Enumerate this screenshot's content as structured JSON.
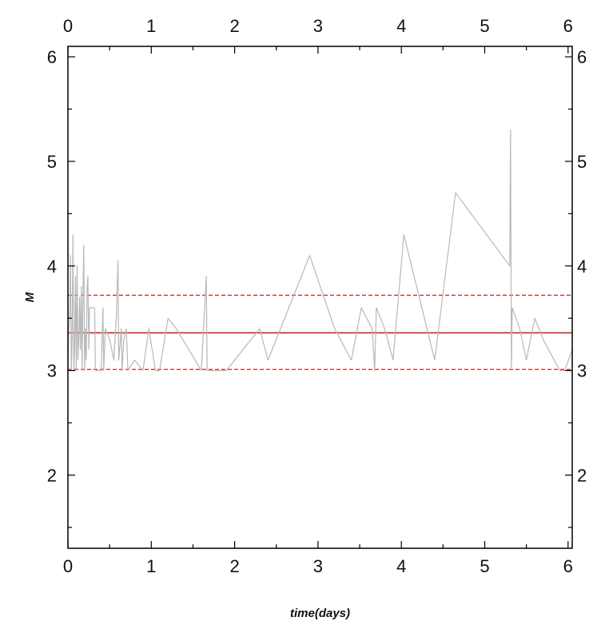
{
  "chart_data": {
    "type": "line",
    "xlabel": "time(days)",
    "ylabel": "M",
    "xlim": [
      0,
      6.05
    ],
    "ylim": [
      1.3,
      6.1
    ],
    "x_ticks": [
      0,
      1,
      2,
      3,
      4,
      5,
      6
    ],
    "y_ticks": [
      2,
      3,
      4,
      5,
      6
    ],
    "grid": false,
    "axes_on_all_sides": true,
    "series": [
      {
        "color": "#b8b8b8",
        "points": [
          [
            0.0,
            3.0
          ],
          [
            0.01,
            3.4
          ],
          [
            0.02,
            3.5
          ],
          [
            0.03,
            4.1
          ],
          [
            0.04,
            3.0
          ],
          [
            0.05,
            3.3
          ],
          [
            0.06,
            4.3
          ],
          [
            0.07,
            3.0
          ],
          [
            0.08,
            3.2
          ],
          [
            0.09,
            3.9
          ],
          [
            0.1,
            3.0
          ],
          [
            0.11,
            4.0
          ],
          [
            0.12,
            3.1
          ],
          [
            0.13,
            3.3
          ],
          [
            0.14,
            3.7
          ],
          [
            0.15,
            3.2
          ],
          [
            0.16,
            3.8
          ],
          [
            0.17,
            3.0
          ],
          [
            0.18,
            3.7
          ],
          [
            0.19,
            4.2
          ],
          [
            0.2,
            3.0
          ],
          [
            0.21,
            3.4
          ],
          [
            0.22,
            3.1
          ],
          [
            0.23,
            3.8
          ],
          [
            0.24,
            3.9
          ],
          [
            0.25,
            3.2
          ],
          [
            0.26,
            3.6
          ],
          [
            0.3,
            3.6
          ],
          [
            0.32,
            3.6
          ],
          [
            0.33,
            3.0
          ],
          [
            0.4,
            3.0
          ],
          [
            0.42,
            3.6
          ],
          [
            0.43,
            3.0
          ],
          [
            0.45,
            3.4
          ],
          [
            0.5,
            3.3
          ],
          [
            0.55,
            3.1
          ],
          [
            0.58,
            3.5
          ],
          [
            0.6,
            4.05
          ],
          [
            0.61,
            3.1
          ],
          [
            0.64,
            3.4
          ],
          [
            0.65,
            3.0
          ],
          [
            0.67,
            3.3
          ],
          [
            0.7,
            3.4
          ],
          [
            0.72,
            3.0
          ],
          [
            0.8,
            3.1
          ],
          [
            0.9,
            3.0
          ],
          [
            0.97,
            3.4
          ],
          [
            1.05,
            3.0
          ],
          [
            1.1,
            3.0
          ],
          [
            1.2,
            3.5
          ],
          [
            1.3,
            3.4
          ],
          [
            1.6,
            3.0
          ],
          [
            1.66,
            3.9
          ],
          [
            1.67,
            3.0
          ],
          [
            1.9,
            3.0
          ],
          [
            2.3,
            3.4
          ],
          [
            2.4,
            3.1
          ],
          [
            2.9,
            4.1
          ],
          [
            3.2,
            3.4
          ],
          [
            3.4,
            3.1
          ],
          [
            3.52,
            3.6
          ],
          [
            3.65,
            3.4
          ],
          [
            3.68,
            3.0
          ],
          [
            3.7,
            3.6
          ],
          [
            3.8,
            3.4
          ],
          [
            3.9,
            3.1
          ],
          [
            4.03,
            4.3
          ],
          [
            4.4,
            3.1
          ],
          [
            4.65,
            4.7
          ],
          [
            5.3,
            4.0
          ],
          [
            5.31,
            5.3
          ],
          [
            5.32,
            3.0
          ],
          [
            5.33,
            3.6
          ],
          [
            5.42,
            3.4
          ],
          [
            5.5,
            3.1
          ],
          [
            5.6,
            3.5
          ],
          [
            5.7,
            3.3
          ],
          [
            5.9,
            3.0
          ],
          [
            5.96,
            3.0
          ],
          [
            6.05,
            3.2
          ]
        ]
      }
    ],
    "reference_lines": [
      {
        "y": 3.36,
        "color": "#cc2222",
        "style": "solid"
      },
      {
        "y": 3.72,
        "color": "#cc2222",
        "style": "dashed"
      },
      {
        "y": 3.01,
        "color": "#cc2222",
        "style": "dashed"
      }
    ]
  }
}
